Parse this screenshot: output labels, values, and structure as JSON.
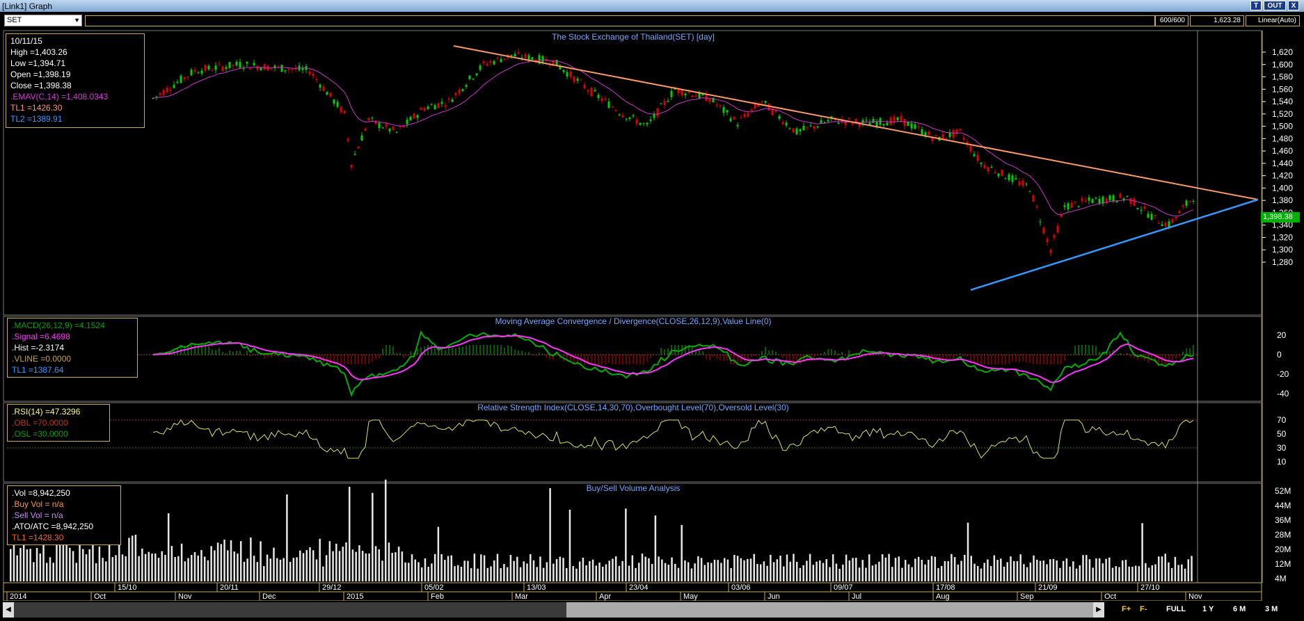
{
  "window": {
    "title": "[Link1] Graph",
    "btn_t": "T",
    "btn_out": "OUT",
    "btn_x": "X"
  },
  "toolbar": {
    "symbol": "SET",
    "bars": "600/600",
    "cursor_price": "1,623.28",
    "scale": "Linear(Auto)"
  },
  "price_panel": {
    "title": "The Stock Exchange of Thailand(SET) [day]",
    "info": [
      "10/11/15",
      "High  =1,403.26",
      "Low  =1,394.71",
      "Open  =1,398.19",
      "Close  =1,398.38",
      ".EMAV(C,14)  =1,408.0343",
      "TL1 =1426.30",
      "TL2 =1389.91"
    ],
    "last_price": "1,398.38",
    "yticks": [
      "1,620",
      "1,600",
      "1,580",
      "1,560",
      "1,540",
      "1,520",
      "1,500",
      "1,480",
      "1,460",
      "1,440",
      "1,420",
      "1,400",
      "1,380",
      "1,360",
      "1,340",
      "1,320",
      "1,300",
      "1,280"
    ],
    "colors": {
      "candle_up": "#00d000",
      "candle_down": "#e00000",
      "ema": "#cc33cc",
      "tl1": "#ff9966",
      "tl2": "#3399ff"
    }
  },
  "macd_panel": {
    "title": "Moving Average Convergence / Divergence(CLOSE,26,12,9),Value Line(0)",
    "info": [
      ".MACD(26,12,9)  =4.1524",
      ".Signal  =6.4698",
      ".Hist  =-2.3174",
      ".VLINE  =0.0000",
      "TL1 =1387.64"
    ],
    "yticks": [
      "20",
      "0",
      "-20",
      "-40"
    ]
  },
  "rsi_panel": {
    "title": "Relative Strength Index(CLOSE,14,30,70),Overbought Level(70),Oversold Level(30)",
    "info": [
      ".RSI(14)  =47.3296",
      ".OBL  =70.0000",
      ".OSL  =30.0000"
    ],
    "yticks": [
      "70",
      "50",
      "30",
      "10"
    ]
  },
  "volume_panel": {
    "title": "Buy/Sell Volume Analysis",
    "info": [
      ".Vol   =8,942,250",
      ".Buy Vol  = n/a",
      ".Sell Vol  = n/a",
      ".ATO/ATC  =8,942,250",
      "TL1 =1428.30"
    ],
    "yticks": [
      "52M",
      "44M",
      "36M",
      "28M",
      "20M",
      "12M",
      "4M"
    ]
  },
  "time_axis": {
    "row1": [
      "15/10",
      "20/11",
      "29/12",
      "05/02",
      "13/03",
      "23/04",
      "03/06",
      "09/07",
      "17/08",
      "21/09",
      "27/10"
    ],
    "row2": [
      "2014",
      "Oct",
      "Nov",
      "Dec",
      "2015",
      "Feb",
      "Mar",
      "Apr",
      "May",
      "Jun",
      "Jul",
      "Aug",
      "Sep",
      "Oct",
      "Nov"
    ]
  },
  "bottom_bar": {
    "full": "FULL",
    "r1y": "1 Y",
    "r6m": "6 M",
    "r3m": "3 M"
  }
}
